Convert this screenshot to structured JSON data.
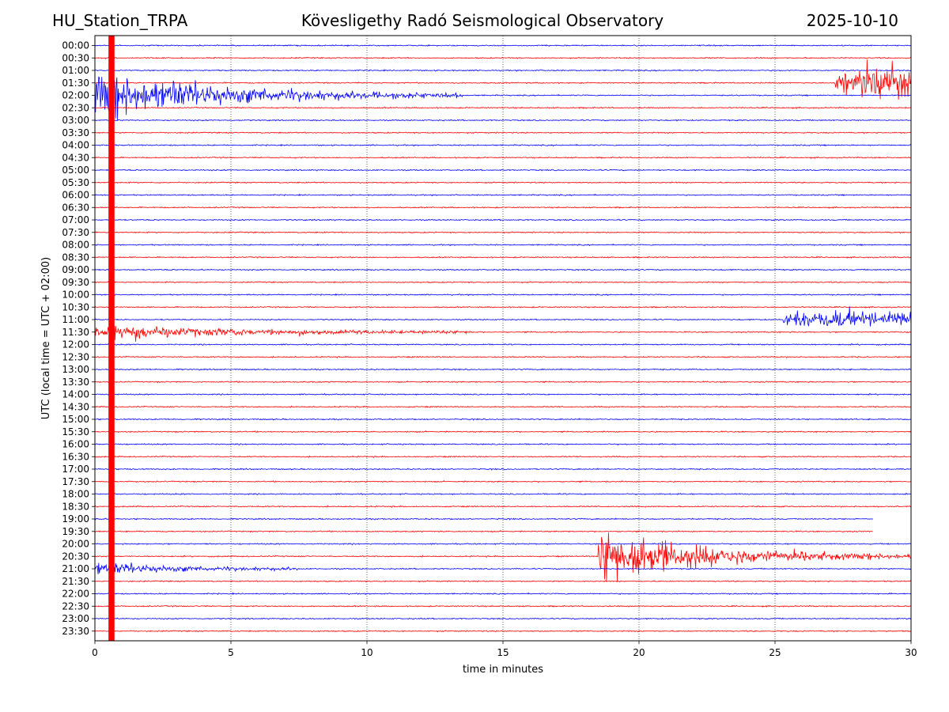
{
  "chart_data": {
    "type": "line",
    "title": "Kövesligethy Radó Seismological Observatory",
    "station": "HU_Station_TRPA",
    "date": "2025-10-10",
    "xlabel": "time in minutes",
    "ylabel": "UTC (local time = UTC + 02:00)",
    "xlim": [
      0,
      30
    ],
    "xticks": [
      "0",
      "5",
      "10",
      "15",
      "20",
      "25",
      "30"
    ],
    "row_labels": [
      "00:00",
      "00:30",
      "01:00",
      "01:30",
      "02:00",
      "02:30",
      "03:00",
      "03:30",
      "04:00",
      "04:30",
      "05:00",
      "05:30",
      "06:00",
      "06:30",
      "07:00",
      "07:30",
      "08:00",
      "08:30",
      "09:00",
      "09:30",
      "10:00",
      "10:30",
      "11:00",
      "11:30",
      "12:00",
      "12:30",
      "13:00",
      "13:30",
      "14:00",
      "14:30",
      "15:00",
      "15:30",
      "16:00",
      "16:30",
      "17:00",
      "17:30",
      "18:00",
      "18:30",
      "19:00",
      "19:30",
      "20:00",
      "20:30",
      "21:00",
      "21:30",
      "22:00",
      "22:30",
      "23:00",
      "23:30"
    ],
    "series_colors": [
      "#0000ff",
      "#ff0000"
    ],
    "grid": true,
    "events": [
      {
        "row": 4,
        "start": 0.0,
        "end": 4.0,
        "amp": 40,
        "decay": 0.5,
        "tail": 13.5
      },
      {
        "row": 3,
        "start": 27.2,
        "end": 30.0,
        "amp": 30,
        "decay": 0.2
      },
      {
        "row": 23,
        "start": 0.0,
        "end": 2.0,
        "amp": 12,
        "decay": 0.4,
        "tail": 14
      },
      {
        "row": 22,
        "start": 25.3,
        "end": 30.0,
        "amp": 16,
        "decay": 0.2
      },
      {
        "row": 41,
        "start": 18.5,
        "end": 21.0,
        "amp": 48,
        "decay": 0.3,
        "tail": 30
      },
      {
        "row": 42,
        "start": 0.0,
        "end": 3.5,
        "amp": 10,
        "decay": 0.4,
        "tail": 7.5
      }
    ],
    "glitch": {
      "start": 0.5,
      "end": 0.72,
      "color": "#ff0000"
    }
  }
}
